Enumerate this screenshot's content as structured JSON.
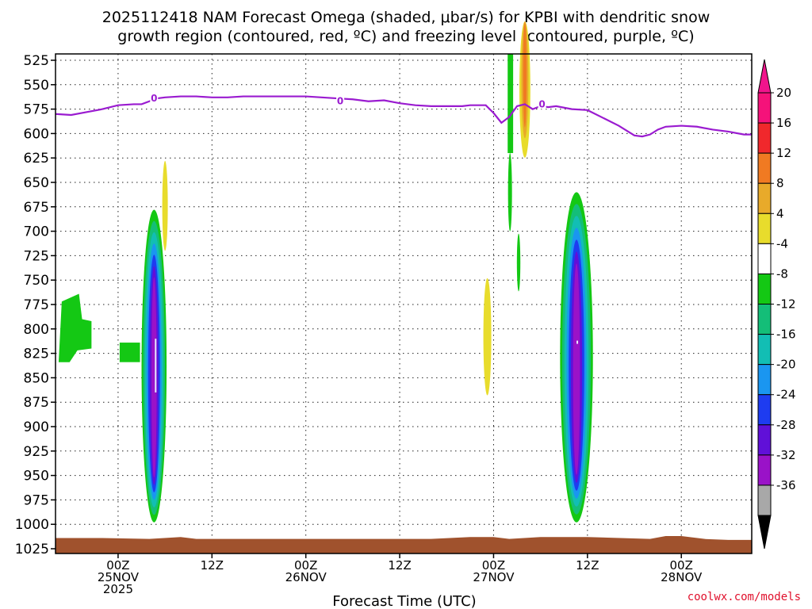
{
  "chart_data": {
    "type": "heatmap",
    "title_line1": "2025112418 NAM Forecast Omega (shaded, μbar/s) for KPBI with dendritic snow",
    "title_line2": "growth region (contoured, red, ºC) and freezing level (contoured, purple, ºC)",
    "xlabel": "Forecast Time (UTC)",
    "y_axis": {
      "labels": [
        "525",
        "550",
        "575",
        "600",
        "625",
        "650",
        "675",
        "700",
        "725",
        "750",
        "775",
        "800",
        "825",
        "850",
        "875",
        "900",
        "925",
        "950",
        "975",
        "1000",
        "1025"
      ],
      "range": [
        525,
        1025
      ],
      "inverted": true,
      "unit": "hPa"
    },
    "x_axis": {
      "range_hours": [
        -8,
        81
      ],
      "ticks": [
        {
          "hour": 0,
          "line1": "00Z",
          "line2": "25NOV",
          "line3": "2025"
        },
        {
          "hour": 12,
          "line1": "12Z",
          "line2": "",
          "line3": ""
        },
        {
          "hour": 24,
          "line1": "00Z",
          "line2": "26NOV",
          "line3": ""
        },
        {
          "hour": 36,
          "line1": "12Z",
          "line2": "",
          "line3": ""
        },
        {
          "hour": 48,
          "line1": "00Z",
          "line2": "27NOV",
          "line3": ""
        },
        {
          "hour": 60,
          "line1": "12Z",
          "line2": "",
          "line3": ""
        },
        {
          "hour": 72,
          "line1": "00Z",
          "line2": "28NOV",
          "line3": ""
        }
      ]
    },
    "grid": true,
    "colorbar": {
      "labels": [
        "20",
        "16",
        "12",
        "8",
        "4",
        "-4",
        "-8",
        "-12",
        "-16",
        "-20",
        "-24",
        "-28",
        "-32",
        "-36"
      ],
      "colors": [
        "#f5127a",
        "#f0282c",
        "#f07a22",
        "#e8aa2a",
        "#e8dc2c",
        "#ffffff",
        "#14c814",
        "#14be78",
        "#12beb4",
        "#1a96f0",
        "#1e3cf0",
        "#6010d8",
        "#9a12c8",
        "#a8a8a8"
      ],
      "top_arrow_color": "#f0148c",
      "bottom_arrow_color": "#000000"
    },
    "freezing_level": {
      "label": "0",
      "color": "#9a1bd0",
      "hours": [
        -8,
        -6,
        -4,
        -2,
        0,
        2,
        3,
        4,
        5,
        6,
        8,
        10,
        12,
        14,
        16,
        18,
        20,
        22,
        24,
        26,
        28,
        30,
        32,
        34,
        36,
        38,
        40,
        42,
        44,
        45,
        46,
        47,
        48,
        49,
        50,
        51,
        52,
        53,
        54,
        55,
        56,
        58,
        60,
        62,
        64,
        66,
        67,
        68,
        69,
        70,
        72,
        74,
        76,
        78,
        80,
        81
      ],
      "pressure": [
        580,
        581,
        578,
        575,
        571,
        570,
        570,
        567,
        564,
        563,
        562,
        562,
        563,
        563,
        562,
        562,
        562,
        562,
        562,
        563,
        564,
        565,
        567,
        566,
        569,
        571,
        572,
        572,
        572,
        571,
        571,
        571,
        579,
        589,
        583,
        572,
        570,
        575,
        572,
        573,
        572,
        575,
        576,
        584,
        592,
        602,
        603,
        601,
        596,
        593,
        592,
        593,
        596,
        598,
        601,
        601
      ]
    },
    "omega_features": [
      {
        "hour_center": 4.6,
        "p_top": 678,
        "p_bottom": 998,
        "min_value": -36,
        "note": "strong upward motion column, 25NOV"
      },
      {
        "hour_center": 58.6,
        "p_top": 660,
        "p_bottom": 998,
        "min_value": -36,
        "note": "strong upward motion column, 27NOV"
      },
      {
        "hour_center": 50.8,
        "p_top": 525,
        "p_bottom": 620,
        "max_value": 12,
        "note": "sinking motion plume"
      },
      {
        "hour_center": 6.0,
        "p_top": 628,
        "p_bottom": 720,
        "max_value": 8,
        "note": "weak sinking"
      },
      {
        "hour_center": 47.2,
        "p_top": 748,
        "p_bottom": 868,
        "max_value": 8,
        "note": "weak sinking"
      },
      {
        "hour_center": -5.8,
        "p_top": 764,
        "p_bottom": 834,
        "min_value": -8,
        "note": "weak rising"
      },
      {
        "hour_center": 1.0,
        "p_top": 814,
        "p_bottom": 834,
        "min_value": -8,
        "note": "weak rising"
      }
    ],
    "surface": {
      "color": "#a0522d",
      "hours": [
        -8,
        -2,
        4,
        8,
        10,
        12,
        20,
        30,
        40,
        45,
        48,
        50,
        54,
        60,
        68,
        70,
        72,
        75,
        78,
        81
      ],
      "pressure": [
        1014,
        1014,
        1015,
        1013,
        1015,
        1015,
        1015,
        1015,
        1015,
        1013,
        1013,
        1015,
        1013,
        1013,
        1015,
        1012,
        1012,
        1015,
        1016,
        1016
      ]
    },
    "credit": "coolwx.com/models"
  }
}
